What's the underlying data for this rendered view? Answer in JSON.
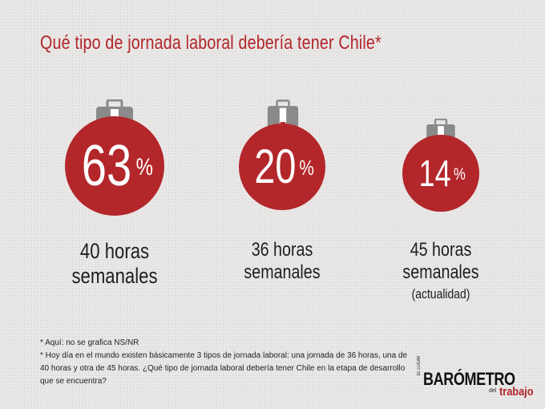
{
  "title": "Qué tipo de jornada laboral debería tener Chile*",
  "colors": {
    "accent": "#b3262a",
    "briefcase": "#8a8a8a",
    "text": "#1e1e1e"
  },
  "chart_data": {
    "type": "bar",
    "title": "Qué tipo de jornada laboral debería tener Chile*",
    "categories": [
      "40 horas semanales",
      "36 horas semanales",
      "45 horas semanales (actualidad)"
    ],
    "values": [
      63,
      20,
      14
    ],
    "unit": "%"
  },
  "stats": [
    {
      "num": "63",
      "sign": "%",
      "line1": "40 horas",
      "line2": "semanales",
      "line3": ""
    },
    {
      "num": "20",
      "sign": "%",
      "line1": "36 horas",
      "line2": "semanales",
      "line3": ""
    },
    {
      "num": "14",
      "sign": "%",
      "line1": "45 horas",
      "line2": "semanales",
      "line3": "(actualidad)"
    }
  ],
  "notes": {
    "note1": "* Aquí: no se grafica NS/NR",
    "note2": "* Hoy día en el mundo existen básicamente 3 tipos de jornada laboral: una jornada de 36 horas, una de 40 horas y otra de 45 horas. ¿Qué tipo de jornada laboral debería tener Chile en la etapa de desarrollo que se encuentra?"
  },
  "logo": {
    "prefix": "EL LUGAR",
    "main": "BARÓMETRO",
    "del": "del",
    "trabajo": "trabajo"
  }
}
